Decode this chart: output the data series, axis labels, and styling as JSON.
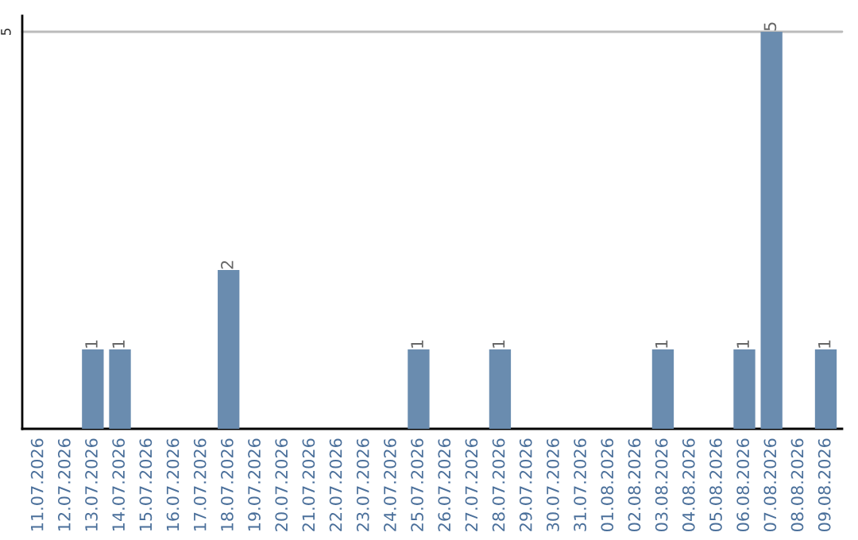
{
  "chart_data": {
    "type": "bar",
    "categories": [
      "11.07.2026",
      "12.07.2026",
      "13.07.2026",
      "14.07.2026",
      "15.07.2026",
      "16.07.2026",
      "17.07.2026",
      "18.07.2026",
      "19.07.2026",
      "20.07.2026",
      "21.07.2026",
      "22.07.2026",
      "23.07.2026",
      "24.07.2026",
      "25.07.2026",
      "26.07.2026",
      "27.07.2026",
      "28.07.2026",
      "29.07.2026",
      "30.07.2026",
      "31.07.2026",
      "01.08.2026",
      "02.08.2026",
      "03.08.2026",
      "04.08.2026",
      "05.08.2026",
      "06.08.2026",
      "07.08.2026",
      "08.08.2026",
      "09.08.2026"
    ],
    "values": [
      0,
      0,
      1,
      1,
      0,
      0,
      0,
      2,
      0,
      0,
      0,
      0,
      0,
      0,
      1,
      0,
      0,
      1,
      0,
      0,
      0,
      0,
      0,
      1,
      0,
      0,
      1,
      5,
      0,
      1
    ],
    "value_labels": [
      null,
      null,
      "1",
      "1",
      null,
      null,
      null,
      "2",
      null,
      null,
      null,
      null,
      null,
      null,
      "1",
      null,
      null,
      "1",
      null,
      null,
      null,
      null,
      null,
      "1",
      null,
      null,
      "1",
      "5",
      null,
      "1"
    ],
    "color": "#6a8caf",
    "ylim": [
      0,
      5.2
    ],
    "yticks": [
      5
    ],
    "grid": "y",
    "legend": false
  }
}
